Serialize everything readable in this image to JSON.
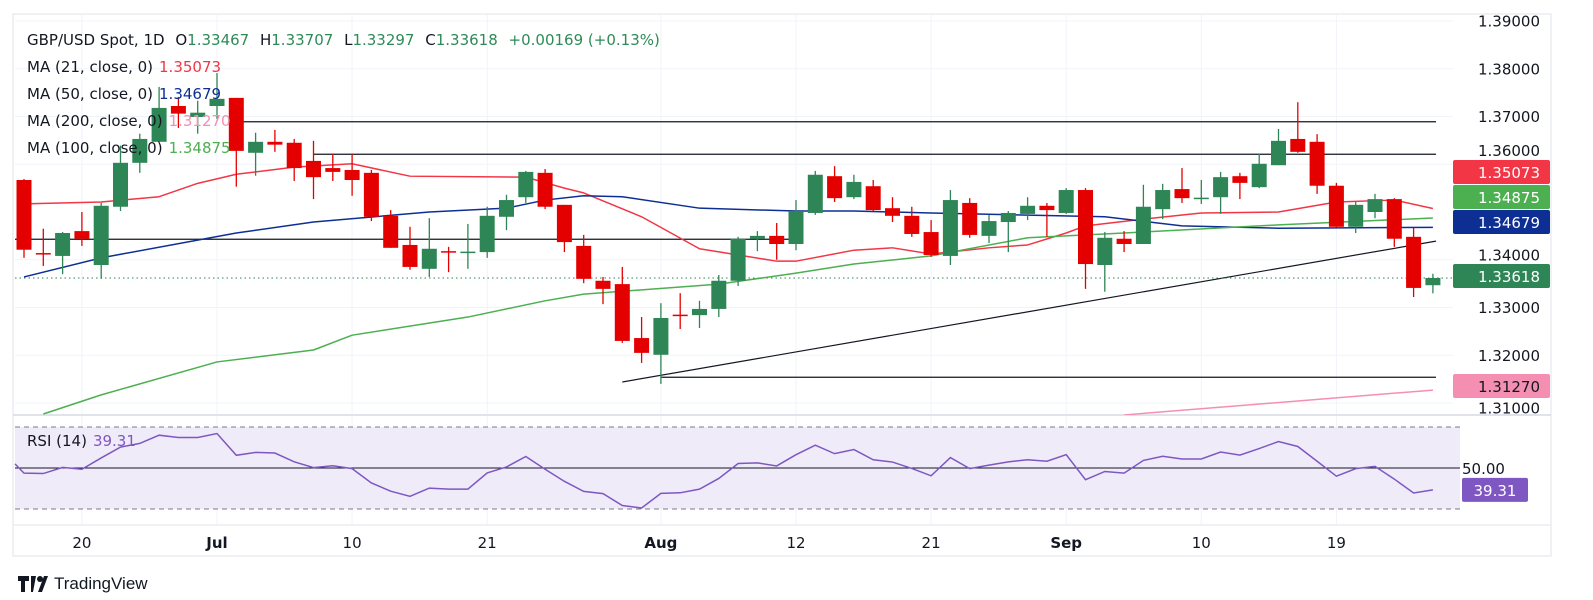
{
  "header": {
    "symbol": "GBP/USD Spot, 1D",
    "o_label": "O",
    "o": "1.33467",
    "h_label": "H",
    "h": "1.33707",
    "l_label": "L",
    "l": "1.33297",
    "c_label": "C",
    "c": "1.33618",
    "change": "+0.00169 (+0.13%)"
  },
  "indicators": [
    {
      "label": "MA (21, close, 0)",
      "value": "1.35073",
      "color": "#f23645"
    },
    {
      "label": "MA (50, close, 0)",
      "value": "1.34679",
      "color": "#0d2f94"
    },
    {
      "label": "MA (200, close, 0)",
      "value": "1.31270",
      "color": "#f48fb1"
    },
    {
      "label": "MA (100, close, 0)",
      "value": "1.34875",
      "color": "#4caf50"
    }
  ],
  "rsi": {
    "label": "RSI (14)",
    "value": "39.31",
    "color": "#7e57c2"
  },
  "branding": {
    "logo_text": "TradingView"
  },
  "chart_data": {
    "type": "candlestick",
    "title": "GBP/USD Spot, 1D",
    "up_color": "#2e8555",
    "down_color": "#e50000",
    "ylim": [
      1.3075,
      1.39
    ],
    "price_ticks": [
      "1.39000",
      "1.38000",
      "1.37000",
      "1.36000",
      "1.34000",
      "1.33000",
      "1.32000",
      "1.31000"
    ],
    "price_tick_values": [
      1.39,
      1.38,
      1.37,
      1.36,
      1.34,
      1.33,
      1.32,
      1.31
    ],
    "x_ticks": [
      {
        "date": "2025-06-20",
        "label": "20"
      },
      {
        "date": "2025-07-01",
        "label": "Jul"
      },
      {
        "date": "2025-07-10",
        "label": "10"
      },
      {
        "date": "2025-07-21",
        "label": "21"
      },
      {
        "date": "2025-08-01",
        "label": "Aug"
      },
      {
        "date": "2025-08-12",
        "label": "12"
      },
      {
        "date": "2025-08-21",
        "label": "21"
      },
      {
        "date": "2025-09-01",
        "label": "Sep"
      },
      {
        "date": "2025-09-10",
        "label": "10"
      },
      {
        "date": "2025-09-19",
        "label": "19"
      }
    ],
    "dates": [
      "2025-06-17",
      "2025-06-18",
      "2025-06-19",
      "2025-06-20",
      "2025-06-23",
      "2025-06-24",
      "2025-06-25",
      "2025-06-26",
      "2025-06-27",
      "2025-06-30",
      "2025-07-01",
      "2025-07-02",
      "2025-07-03",
      "2025-07-04",
      "2025-07-07",
      "2025-07-08",
      "2025-07-09",
      "2025-07-10",
      "2025-07-11",
      "2025-07-14",
      "2025-07-15",
      "2025-07-16",
      "2025-07-17",
      "2025-07-18",
      "2025-07-21",
      "2025-07-22",
      "2025-07-23",
      "2025-07-24",
      "2025-07-25",
      "2025-07-28",
      "2025-07-29",
      "2025-07-30",
      "2025-07-31",
      "2025-08-01",
      "2025-08-04",
      "2025-08-05",
      "2025-08-06",
      "2025-08-07",
      "2025-08-08",
      "2025-08-11",
      "2025-08-12",
      "2025-08-13",
      "2025-08-14",
      "2025-08-15",
      "2025-08-18",
      "2025-08-19",
      "2025-08-20",
      "2025-08-21",
      "2025-08-22",
      "2025-08-25",
      "2025-08-26",
      "2025-08-27",
      "2025-08-28",
      "2025-08-29",
      "2025-09-01",
      "2025-09-02",
      "2025-09-03",
      "2025-09-04",
      "2025-09-05",
      "2025-09-08",
      "2025-09-09",
      "2025-09-10",
      "2025-09-11",
      "2025-09-12",
      "2025-09-15",
      "2025-09-16",
      "2025-09-17",
      "2025-09-18",
      "2025-09-19",
      "2025-09-22",
      "2025-09-23",
      "2025-09-24",
      "2025-09-25",
      "2025-09-26"
    ],
    "ohlc": [
      [
        1.3567,
        1.3569,
        1.3404,
        1.3421
      ],
      [
        1.3414,
        1.3465,
        1.3387,
        1.3412
      ],
      [
        1.3408,
        1.3458,
        1.337,
        1.3456
      ],
      [
        1.346,
        1.35,
        1.3429,
        1.3444
      ],
      [
        1.3389,
        1.3519,
        1.336,
        1.3513
      ],
      [
        1.3511,
        1.3639,
        1.3502,
        1.3603
      ],
      [
        1.3603,
        1.3664,
        1.3582,
        1.3653
      ],
      [
        1.3647,
        1.3762,
        1.3647,
        1.3718
      ],
      [
        1.3722,
        1.3741,
        1.3676,
        1.3706
      ],
      [
        1.3699,
        1.3733,
        1.3664,
        1.3708
      ],
      [
        1.3722,
        1.3791,
        1.3695,
        1.3737
      ],
      [
        1.3739,
        1.3739,
        1.3553,
        1.3628
      ],
      [
        1.3624,
        1.3666,
        1.3576,
        1.3647
      ],
      [
        1.3647,
        1.3672,
        1.3626,
        1.3641
      ],
      [
        1.3645,
        1.3653,
        1.3565,
        1.3592
      ],
      [
        1.3607,
        1.3649,
        1.3527,
        1.3573
      ],
      [
        1.3592,
        1.3622,
        1.3565,
        1.3584
      ],
      [
        1.3588,
        1.3622,
        1.3534,
        1.3567
      ],
      [
        1.3582,
        1.3588,
        1.3481,
        1.349
      ],
      [
        1.3492,
        1.3504,
        1.3425,
        1.3425
      ],
      [
        1.3431,
        1.3469,
        1.3379,
        1.3385
      ],
      [
        1.3381,
        1.3487,
        1.3364,
        1.3423
      ],
      [
        1.3418,
        1.3427,
        1.3374,
        1.3415
      ],
      [
        1.3414,
        1.3475,
        1.3381,
        1.3417
      ],
      [
        1.3416,
        1.3511,
        1.3404,
        1.3492
      ],
      [
        1.349,
        1.3536,
        1.3462,
        1.3525
      ],
      [
        1.3531,
        1.3586,
        1.3519,
        1.3584
      ],
      [
        1.3582,
        1.359,
        1.3506,
        1.3511
      ],
      [
        1.3515,
        1.3515,
        1.3416,
        1.3437
      ],
      [
        1.3429,
        1.3452,
        1.3351,
        1.336
      ],
      [
        1.3356,
        1.3364,
        1.3307,
        1.3339
      ],
      [
        1.3349,
        1.3385,
        1.3226,
        1.323
      ],
      [
        1.3236,
        1.328,
        1.3184,
        1.3205
      ],
      [
        1.3201,
        1.3309,
        1.314,
        1.3278
      ],
      [
        1.3285,
        1.333,
        1.3255,
        1.3284
      ],
      [
        1.3284,
        1.3314,
        1.3257,
        1.3297
      ],
      [
        1.3297,
        1.3368,
        1.328,
        1.3356
      ],
      [
        1.3356,
        1.3448,
        1.3345,
        1.3444
      ],
      [
        1.3444,
        1.346,
        1.3418,
        1.345
      ],
      [
        1.345,
        1.3477,
        1.34,
        1.3433
      ],
      [
        1.3433,
        1.3525,
        1.342,
        1.3502
      ],
      [
        1.3498,
        1.3586,
        1.3494,
        1.3578
      ],
      [
        1.3575,
        1.3596,
        1.3521,
        1.3529
      ],
      [
        1.3531,
        1.3578,
        1.3527,
        1.3563
      ],
      [
        1.3554,
        1.3567,
        1.3502,
        1.3504
      ],
      [
        1.3508,
        1.3531,
        1.3479,
        1.3492
      ],
      [
        1.3492,
        1.3511,
        1.3448,
        1.3454
      ],
      [
        1.3458,
        1.3483,
        1.3406,
        1.341
      ],
      [
        1.3408,
        1.3546,
        1.3389,
        1.3525
      ],
      [
        1.3519,
        1.3529,
        1.3446,
        1.3452
      ],
      [
        1.345,
        1.3494,
        1.3435,
        1.3481
      ],
      [
        1.3479,
        1.3502,
        1.3416,
        1.3498
      ],
      [
        1.3496,
        1.3531,
        1.3483,
        1.3513
      ],
      [
        1.3513,
        1.3519,
        1.3448,
        1.3504
      ],
      [
        1.3498,
        1.355,
        1.3496,
        1.3546
      ],
      [
        1.3546,
        1.355,
        1.3339,
        1.3391
      ],
      [
        1.3389,
        1.3458,
        1.3333,
        1.3446
      ],
      [
        1.3444,
        1.346,
        1.3416,
        1.3433
      ],
      [
        1.3433,
        1.3557,
        1.3433,
        1.3511
      ],
      [
        1.3506,
        1.3559,
        1.3485,
        1.3546
      ],
      [
        1.3548,
        1.3592,
        1.3519,
        1.3529
      ],
      [
        1.3528,
        1.3567,
        1.3517,
        1.353
      ],
      [
        1.3531,
        1.3584,
        1.3496,
        1.3573
      ],
      [
        1.3575,
        1.3582,
        1.3527,
        1.3561
      ],
      [
        1.3552,
        1.3622,
        1.355,
        1.3601
      ],
      [
        1.3598,
        1.3674,
        1.3598,
        1.3649
      ],
      [
        1.3653,
        1.373,
        1.3624,
        1.3626
      ],
      [
        1.3647,
        1.3663,
        1.3538,
        1.3555
      ],
      [
        1.3555,
        1.3561,
        1.3467,
        1.3469
      ],
      [
        1.3469,
        1.3521,
        1.3456,
        1.3515
      ],
      [
        1.35,
        1.3538,
        1.3487,
        1.3527
      ],
      [
        1.3527,
        1.3529,
        1.3427,
        1.3444
      ],
      [
        1.3448,
        1.3467,
        1.3322,
        1.3341
      ],
      [
        1.33467,
        1.33707,
        1.33297,
        1.33618
      ]
    ],
    "moving_averages": [
      {
        "name": "MA (21, close, 0)",
        "color": "#f23645",
        "last": "1.35073",
        "points": [
          [
            "2025-06-17",
            1.3517
          ],
          [
            "2025-06-23",
            1.3521
          ],
          [
            "2025-06-26",
            1.3532
          ],
          [
            "2025-06-30",
            1.356
          ],
          [
            "2025-07-02",
            1.3579
          ],
          [
            "2025-07-07",
            1.3594
          ],
          [
            "2025-07-10",
            1.3601
          ],
          [
            "2025-07-15",
            1.3575
          ],
          [
            "2025-07-23",
            1.3573
          ],
          [
            "2025-07-25",
            1.355
          ],
          [
            "2025-07-28",
            1.354
          ],
          [
            "2025-07-31",
            1.349
          ],
          [
            "2025-08-05",
            1.3423
          ],
          [
            "2025-08-11",
            1.3397
          ],
          [
            "2025-08-12",
            1.3397
          ],
          [
            "2025-08-15",
            1.342
          ],
          [
            "2025-08-19",
            1.3425
          ],
          [
            "2025-08-21",
            1.3412
          ],
          [
            "2025-08-26",
            1.3425
          ],
          [
            "2025-08-28",
            1.3431
          ],
          [
            "2025-09-01",
            1.3456
          ],
          [
            "2025-09-02",
            1.3471
          ],
          [
            "2025-09-05",
            1.3485
          ],
          [
            "2025-09-10",
            1.3498
          ],
          [
            "2025-09-16",
            1.35
          ],
          [
            "2025-09-19",
            1.3521
          ],
          [
            "2025-09-24",
            1.3525
          ],
          [
            "2025-09-26",
            1.35073
          ]
        ]
      },
      {
        "name": "MA (50, close, 0)",
        "color": "#0d2f94",
        "last": "1.34679",
        "points": [
          [
            "2025-06-17",
            1.3364
          ],
          [
            "2025-06-23",
            1.3404
          ],
          [
            "2025-07-02",
            1.3456
          ],
          [
            "2025-07-08",
            1.3479
          ],
          [
            "2025-07-16",
            1.35
          ],
          [
            "2025-07-22",
            1.3508
          ],
          [
            "2025-07-24",
            1.3525
          ],
          [
            "2025-07-28",
            1.3534
          ],
          [
            "2025-07-30",
            1.3532
          ],
          [
            "2025-08-05",
            1.3508
          ],
          [
            "2025-08-12",
            1.3502
          ],
          [
            "2025-08-15",
            1.3502
          ],
          [
            "2025-08-21",
            1.3498
          ],
          [
            "2025-09-03",
            1.349
          ],
          [
            "2025-09-09",
            1.3471
          ],
          [
            "2025-09-16",
            1.3466
          ],
          [
            "2025-09-26",
            1.34679
          ]
        ]
      },
      {
        "name": "MA (100, close, 0)",
        "color": "#4caf50",
        "last": "1.34875",
        "points": [
          [
            "2025-06-18",
            1.3077
          ],
          [
            "2025-06-23",
            1.3117
          ],
          [
            "2025-07-01",
            1.3186
          ],
          [
            "2025-07-08",
            1.3211
          ],
          [
            "2025-07-10",
            1.3242
          ],
          [
            "2025-07-18",
            1.328
          ],
          [
            "2025-07-24",
            1.3314
          ],
          [
            "2025-07-28",
            1.3328
          ],
          [
            "2025-08-06",
            1.3349
          ],
          [
            "2025-08-12",
            1.3372
          ],
          [
            "2025-08-15",
            1.3391
          ],
          [
            "2025-08-21",
            1.3408
          ],
          [
            "2025-08-28",
            1.3446
          ],
          [
            "2025-09-04",
            1.3456
          ],
          [
            "2025-09-16",
            1.3473
          ],
          [
            "2025-09-26",
            1.34875
          ]
        ]
      },
      {
        "name": "MA (200, close, 0)",
        "color": "#f48fb1",
        "last": "1.31270",
        "points": [
          [
            "2025-09-04",
            1.3075
          ],
          [
            "2025-09-26",
            1.3127
          ]
        ]
      }
    ],
    "drawn_lines": [
      {
        "from": [
          "2025-07-02",
          1.3689
        ],
        "to": [
          "2025-09-26",
          1.3689
        ]
      },
      {
        "from": [
          "2025-07-08",
          1.3621
        ],
        "to": [
          "2025-09-26",
          1.3621
        ]
      },
      {
        "from": [
          "2025-06-16",
          1.3443
        ],
        "to": [
          "2025-08-12",
          1.3443
        ]
      },
      {
        "from": [
          "2025-08-01",
          1.3154
        ],
        "to": [
          "2025-09-26",
          1.3154
        ]
      },
      {
        "from": [
          "2025-07-30",
          1.3144
        ],
        "to": [
          "2025-09-26",
          1.3439
        ]
      }
    ],
    "price_tags": [
      {
        "value": "1.35073",
        "color": "#f23645",
        "text_color": "#ffffff"
      },
      {
        "value": "1.34875",
        "color": "#4caf50",
        "text_color": "#ffffff"
      },
      {
        "value": "1.34679",
        "color": "#0d2f94",
        "text_color": "#ffffff"
      },
      {
        "value": "1.33618",
        "color": "#2e8555",
        "text_color": "#ffffff"
      },
      {
        "value": "1.31270",
        "color": "#f48fb1",
        "text_color": "#131722"
      }
    ],
    "rsi_pane": {
      "levels": [
        70,
        50,
        30
      ],
      "level_label": "50.00",
      "values": [
        47.5,
        47.3,
        50.3,
        49.4,
        54.9,
        60.2,
        62,
        66,
        64.9,
        64.9,
        66.8,
        56.2,
        57.6,
        57.3,
        53,
        50.2,
        51.1,
        49.7,
        42.7,
        38.7,
        36.2,
        40.2,
        39.7,
        39.7,
        47.6,
        50.5,
        55.6,
        49.4,
        43.5,
        38.6,
        37.5,
        31.7,
        30.5,
        37.6,
        37.9,
        39.7,
        44.9,
        52.2,
        52.5,
        51,
        56.5,
        61.1,
        57,
        59,
        54,
        52.9,
        49.8,
        46.2,
        55.1,
        49.7,
        51.4,
        53,
        54,
        53.3,
        56.5,
        44.3,
        48.3,
        47.5,
        53.7,
        55.7,
        54.4,
        54.4,
        57.8,
        56.3,
        59.5,
        62.9,
        60.5,
        53.3,
        46,
        49.7,
        50.8,
        44.6,
        37.8,
        39.31
      ]
    }
  }
}
